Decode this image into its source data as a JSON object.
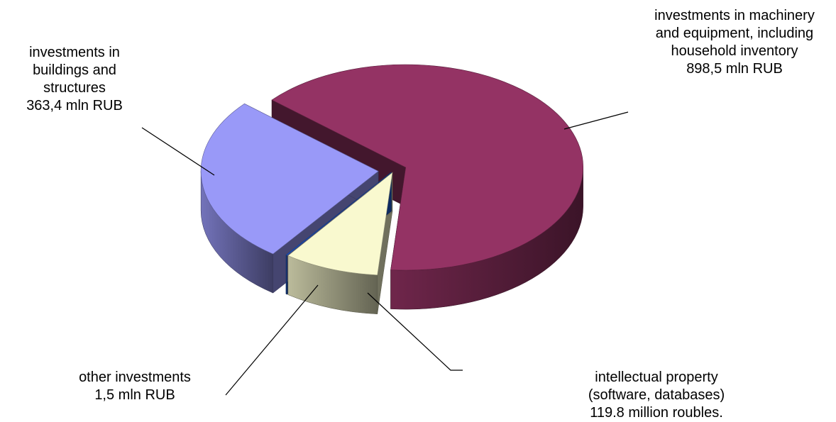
{
  "chart_data": {
    "type": "pie",
    "categories": [
      "investments in machinery and equipment, including household inventory",
      "intellectual property (software, databases)",
      "other investments",
      "investments in buildings and structures"
    ],
    "values": [
      898.5,
      119.8,
      1.5,
      363.4
    ],
    "value_labels": [
      "898,5 mln RUB",
      "119.8 million roubles.",
      "1,5 mln RUB",
      "363,4 mln RUB"
    ],
    "colors": [
      "#943364",
      "#f9f9cf",
      "#1f5fd6",
      "#9999f8"
    ]
  }
}
